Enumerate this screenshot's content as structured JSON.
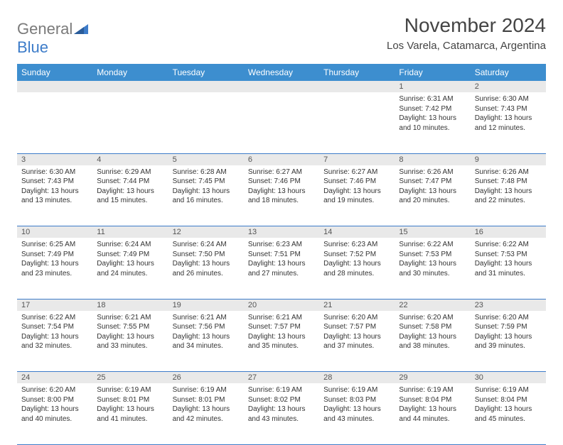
{
  "brand": {
    "name_part1": "General",
    "name_part2": "Blue",
    "color_gray": "#7a7a7a",
    "color_blue": "#3d7cc9"
  },
  "header": {
    "month_title": "November 2024",
    "location": "Los Varela, Catamarca, Argentina"
  },
  "colors": {
    "header_bg": "#3d8ecf",
    "header_text": "#ffffff",
    "number_row_bg": "#e9e9e9",
    "border": "#3d7cc9",
    "background": "#ffffff"
  },
  "day_headers": [
    "Sunday",
    "Monday",
    "Tuesday",
    "Wednesday",
    "Thursday",
    "Friday",
    "Saturday"
  ],
  "weeks": [
    [
      null,
      null,
      null,
      null,
      null,
      {
        "n": "1",
        "sunrise": "6:31 AM",
        "sunset": "7:42 PM",
        "daylight": "Daylight: 13 hours and 10 minutes."
      },
      {
        "n": "2",
        "sunrise": "6:30 AM",
        "sunset": "7:43 PM",
        "daylight": "Daylight: 13 hours and 12 minutes."
      }
    ],
    [
      {
        "n": "3",
        "sunrise": "6:30 AM",
        "sunset": "7:43 PM",
        "daylight": "Daylight: 13 hours and 13 minutes."
      },
      {
        "n": "4",
        "sunrise": "6:29 AM",
        "sunset": "7:44 PM",
        "daylight": "Daylight: 13 hours and 15 minutes."
      },
      {
        "n": "5",
        "sunrise": "6:28 AM",
        "sunset": "7:45 PM",
        "daylight": "Daylight: 13 hours and 16 minutes."
      },
      {
        "n": "6",
        "sunrise": "6:27 AM",
        "sunset": "7:46 PM",
        "daylight": "Daylight: 13 hours and 18 minutes."
      },
      {
        "n": "7",
        "sunrise": "6:27 AM",
        "sunset": "7:46 PM",
        "daylight": "Daylight: 13 hours and 19 minutes."
      },
      {
        "n": "8",
        "sunrise": "6:26 AM",
        "sunset": "7:47 PM",
        "daylight": "Daylight: 13 hours and 20 minutes."
      },
      {
        "n": "9",
        "sunrise": "6:26 AM",
        "sunset": "7:48 PM",
        "daylight": "Daylight: 13 hours and 22 minutes."
      }
    ],
    [
      {
        "n": "10",
        "sunrise": "6:25 AM",
        "sunset": "7:49 PM",
        "daylight": "Daylight: 13 hours and 23 minutes."
      },
      {
        "n": "11",
        "sunrise": "6:24 AM",
        "sunset": "7:49 PM",
        "daylight": "Daylight: 13 hours and 24 minutes."
      },
      {
        "n": "12",
        "sunrise": "6:24 AM",
        "sunset": "7:50 PM",
        "daylight": "Daylight: 13 hours and 26 minutes."
      },
      {
        "n": "13",
        "sunrise": "6:23 AM",
        "sunset": "7:51 PM",
        "daylight": "Daylight: 13 hours and 27 minutes."
      },
      {
        "n": "14",
        "sunrise": "6:23 AM",
        "sunset": "7:52 PM",
        "daylight": "Daylight: 13 hours and 28 minutes."
      },
      {
        "n": "15",
        "sunrise": "6:22 AM",
        "sunset": "7:53 PM",
        "daylight": "Daylight: 13 hours and 30 minutes."
      },
      {
        "n": "16",
        "sunrise": "6:22 AM",
        "sunset": "7:53 PM",
        "daylight": "Daylight: 13 hours and 31 minutes."
      }
    ],
    [
      {
        "n": "17",
        "sunrise": "6:22 AM",
        "sunset": "7:54 PM",
        "daylight": "Daylight: 13 hours and 32 minutes."
      },
      {
        "n": "18",
        "sunrise": "6:21 AM",
        "sunset": "7:55 PM",
        "daylight": "Daylight: 13 hours and 33 minutes."
      },
      {
        "n": "19",
        "sunrise": "6:21 AM",
        "sunset": "7:56 PM",
        "daylight": "Daylight: 13 hours and 34 minutes."
      },
      {
        "n": "20",
        "sunrise": "6:21 AM",
        "sunset": "7:57 PM",
        "daylight": "Daylight: 13 hours and 35 minutes."
      },
      {
        "n": "21",
        "sunrise": "6:20 AM",
        "sunset": "7:57 PM",
        "daylight": "Daylight: 13 hours and 37 minutes."
      },
      {
        "n": "22",
        "sunrise": "6:20 AM",
        "sunset": "7:58 PM",
        "daylight": "Daylight: 13 hours and 38 minutes."
      },
      {
        "n": "23",
        "sunrise": "6:20 AM",
        "sunset": "7:59 PM",
        "daylight": "Daylight: 13 hours and 39 minutes."
      }
    ],
    [
      {
        "n": "24",
        "sunrise": "6:20 AM",
        "sunset": "8:00 PM",
        "daylight": "Daylight: 13 hours and 40 minutes."
      },
      {
        "n": "25",
        "sunrise": "6:19 AM",
        "sunset": "8:01 PM",
        "daylight": "Daylight: 13 hours and 41 minutes."
      },
      {
        "n": "26",
        "sunrise": "6:19 AM",
        "sunset": "8:01 PM",
        "daylight": "Daylight: 13 hours and 42 minutes."
      },
      {
        "n": "27",
        "sunrise": "6:19 AM",
        "sunset": "8:02 PM",
        "daylight": "Daylight: 13 hours and 43 minutes."
      },
      {
        "n": "28",
        "sunrise": "6:19 AM",
        "sunset": "8:03 PM",
        "daylight": "Daylight: 13 hours and 43 minutes."
      },
      {
        "n": "29",
        "sunrise": "6:19 AM",
        "sunset": "8:04 PM",
        "daylight": "Daylight: 13 hours and 44 minutes."
      },
      {
        "n": "30",
        "sunrise": "6:19 AM",
        "sunset": "8:04 PM",
        "daylight": "Daylight: 13 hours and 45 minutes."
      }
    ]
  ],
  "labels": {
    "sunrise_prefix": "Sunrise: ",
    "sunset_prefix": "Sunset: "
  }
}
